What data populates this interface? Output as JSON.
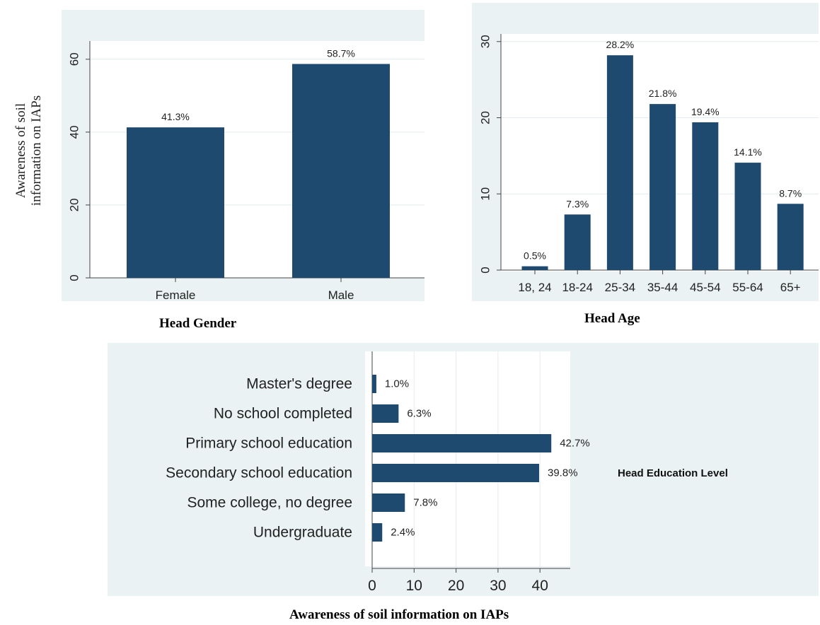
{
  "colors": {
    "bar": "#1f4a70",
    "panel": "#eaf2f3",
    "plot": "#ffffff",
    "axis": "#444444"
  },
  "shared_ylabel": {
    "line1": "Awareness of soil",
    "line2": "information on IAPs"
  },
  "captions": {
    "gender": "Head Gender",
    "age": "Head Age",
    "education_x": "Awareness of soil information on IAPs",
    "education_side": "Head Education Level"
  },
  "chart_data": [
    {
      "id": "gender",
      "type": "bar",
      "orientation": "vertical",
      "categories": [
        "Female",
        "Male"
      ],
      "values": [
        41.3,
        58.7
      ],
      "labels": [
        "41.3%",
        "58.7%"
      ],
      "ylim": [
        0,
        65
      ],
      "yticks": [
        0,
        20,
        40,
        60
      ],
      "xlabel": "Head Gender",
      "ylabel": "Awareness of soil information on IAPs",
      "grid": true
    },
    {
      "id": "age",
      "type": "bar",
      "orientation": "vertical",
      "categories": [
        "18, 24",
        "18-24",
        "25-34",
        "35-44",
        "45-54",
        "55-64",
        "65+"
      ],
      "values": [
        0.5,
        7.3,
        28.2,
        21.8,
        19.4,
        14.1,
        8.7
      ],
      "labels": [
        "0.5%",
        "7.3%",
        "28.2%",
        "21.8%",
        "19.4%",
        "14.1%",
        "8.7%"
      ],
      "ylim": [
        0,
        31
      ],
      "yticks": [
        0,
        10,
        20,
        30
      ],
      "xlabel": "Head Age",
      "grid": true
    },
    {
      "id": "education",
      "type": "bar",
      "orientation": "horizontal",
      "categories": [
        "Master's degree",
        "No school completed",
        "Primary school education",
        "Secondary school education",
        "Some college, no degree",
        "Undergraduate"
      ],
      "values": [
        1.0,
        6.3,
        42.7,
        39.8,
        7.8,
        2.4
      ],
      "labels": [
        "1.0%",
        "6.3%",
        "42.7%",
        "39.8%",
        "7.8%",
        "2.4%"
      ],
      "xlim": [
        0,
        47
      ],
      "xticks": [
        0,
        10,
        20,
        30,
        40
      ],
      "xlabel": "Awareness of soil information on IAPs",
      "legend_text": "Head Education Level",
      "grid": true
    }
  ]
}
